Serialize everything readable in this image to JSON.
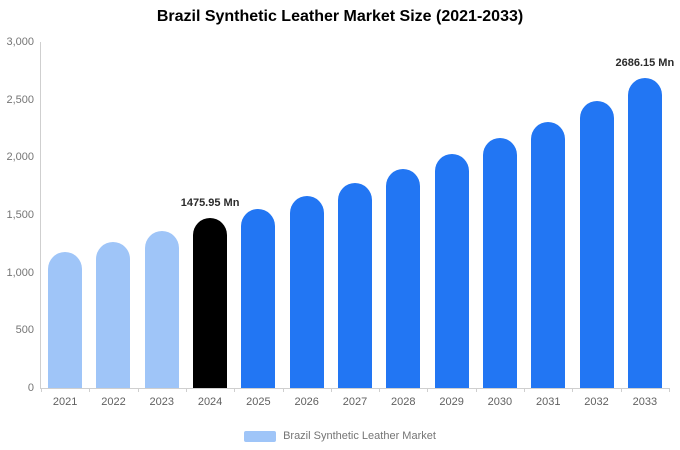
{
  "chart_data": {
    "type": "bar",
    "title": "Brazil Synthetic Leather Market Size (2021-2033)",
    "series_name": "Brazil Synthetic Leather Market",
    "categories": [
      "2021",
      "2022",
      "2023",
      "2024",
      "2025",
      "2026",
      "2027",
      "2028",
      "2029",
      "2030",
      "2031",
      "2032",
      "2033"
    ],
    "values": [
      1180,
      1270,
      1360,
      1475.95,
      1552,
      1663,
      1777,
      1899,
      2030,
      2168,
      2310,
      2490,
      2686.15
    ],
    "bar_colors": [
      "#9fc5f8",
      "#9fc5f8",
      "#9fc5f8",
      "#000000",
      "#2276f3",
      "#2276f3",
      "#2276f3",
      "#2276f3",
      "#2276f3",
      "#2276f3",
      "#2276f3",
      "#2276f3",
      "#2276f3"
    ],
    "ylim": [
      0,
      3000
    ],
    "yticks": [
      {
        "value": 0,
        "label": "0"
      },
      {
        "value": 500,
        "label": "500"
      },
      {
        "value": 1000,
        "label": "1,000"
      },
      {
        "value": 1500,
        "label": "1,500"
      },
      {
        "value": 2000,
        "label": "2,000"
      },
      {
        "value": 2500,
        "label": "2,500"
      },
      {
        "value": 3000,
        "label": "3,000"
      }
    ],
    "annotations": [
      {
        "category": "2024",
        "text": "1475.95 Mn"
      },
      {
        "category": "2033",
        "text": "2686.15 Mn"
      }
    ],
    "xlabel": "",
    "ylabel": "",
    "grid": false,
    "legend_position": "bottom"
  },
  "legend": {
    "swatch_color": "#9fc5f8"
  },
  "colors": {
    "axis_line": "#cfcfcf",
    "tick_text": "#757575",
    "annotation_text": "#2b2b2b",
    "highlight_bar": "#000000",
    "historical_bar": "#9fc5f8",
    "forecast_bar": "#2276f3"
  }
}
